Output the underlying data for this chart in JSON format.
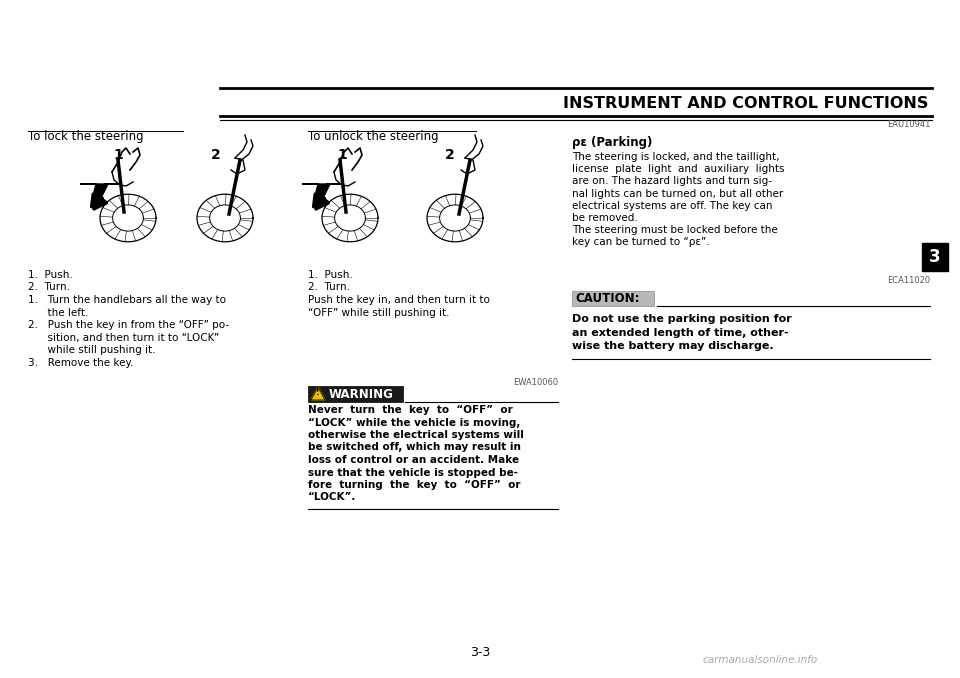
{
  "bg_color": "#ffffff",
  "page_title": "INSTRUMENT AND CONTROL FUNCTIONS",
  "page_number": "3-3",
  "chapter_number": "3",
  "watermark": "carmanualsonline.info",
  "section1_title": "To lock the steering",
  "section2_title": "To unlock the steering",
  "eau_ref": "EAU10941",
  "parking_title": "ρε (Parking)",
  "parking_body_lines": [
    "The steering is locked, and the taillight,",
    "license  plate  light  and  auxiliary  lights",
    "are on. The hazard lights and turn sig-",
    "nal lights can be turned on, but all other",
    "electrical systems are off. The key can",
    "be removed.",
    "The steering must be locked before the",
    "key can be turned to “ρε”."
  ],
  "eca_ref": "ECA11020",
  "caution_label": "CAUTION:",
  "caution_lines": [
    "Do not use the parking position for",
    "an extended length of time, other-",
    "wise the battery may discharge."
  ],
  "lock_sub1": "1.  Push.",
  "lock_sub2": "2.  Turn.",
  "lock_step_lines": [
    "1.   Turn the handlebars all the way to",
    "      the left.",
    "2.   Push the key in from the “OFF” po-",
    "      sition, and then turn it to “LOCK”",
    "      while still pushing it.",
    "3.   Remove the key."
  ],
  "unlock_sub1": "1.  Push.",
  "unlock_sub2": "2.  Turn.",
  "unlock_step_lines": [
    "Push the key in, and then turn it to",
    "“OFF” while still pushing it."
  ],
  "ewa_ref": "EWA10060",
  "warning_label": "WARNING",
  "warning_lines": [
    "Never  turn  the  key  to  “OFF”  or",
    "“LOCK” while the vehicle is moving,",
    "otherwise the electrical systems will",
    "be switched off, which may result in",
    "loss of control or an accident. Make",
    "sure that the vehicle is stopped be-",
    "fore  turning  the  key  to  “OFF”  or",
    "“LOCK”."
  ]
}
